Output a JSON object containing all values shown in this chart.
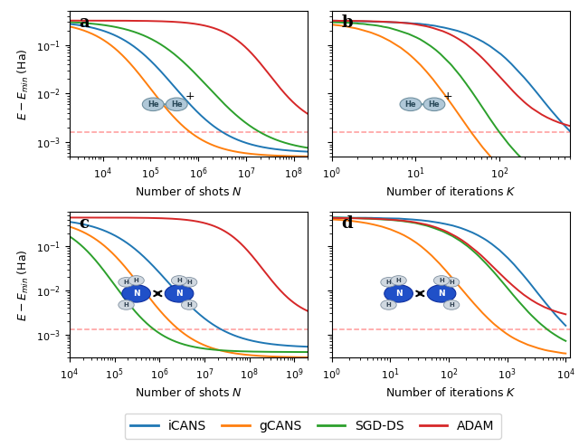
{
  "colors": {
    "iCANS": "#1f77b4",
    "gCANS": "#ff7f0e",
    "SGD-DS": "#2ca02c",
    "ADAM": "#d62728"
  },
  "dashed_color": "#ff9999",
  "dashed_value_a": 0.0016,
  "dashed_value_b": 0.0016,
  "dashed_value_c": 0.0013,
  "dashed_value_d": 0.0013,
  "panel_a": {
    "xlim": [
      2000,
      200000000.0
    ],
    "ylim": [
      0.0005,
      0.5
    ],
    "xlabel": "Number of shots $N$",
    "ylabel": "$E - E_{min}$ (Ha)",
    "label": "a",
    "yticks": [
      0.001,
      0.01,
      0.1
    ]
  },
  "panel_b": {
    "xlim": [
      1,
      700
    ],
    "ylim": [
      0.0005,
      0.5
    ],
    "xlabel": "Number of iterations $K$",
    "ylabel": "",
    "label": "b"
  },
  "panel_c": {
    "xlim": [
      10000.0,
      2000000000.0
    ],
    "ylim": [
      0.0003,
      0.6
    ],
    "xlabel": "Number of shots $N$",
    "ylabel": "$E - E_{min}$ (Ha)",
    "label": "c",
    "yticks": [
      0.001,
      0.01,
      0.1
    ]
  },
  "panel_d": {
    "xlim": [
      1,
      12000.0
    ],
    "ylim": [
      0.0003,
      0.6
    ],
    "xlabel": "Number of iterations $K$",
    "ylabel": "",
    "label": "d"
  },
  "legend_labels": [
    "iCANS",
    "gCANS",
    "SGD-DS",
    "ADAM"
  ],
  "figsize": [
    6.4,
    4.94
  ],
  "dpi": 100
}
